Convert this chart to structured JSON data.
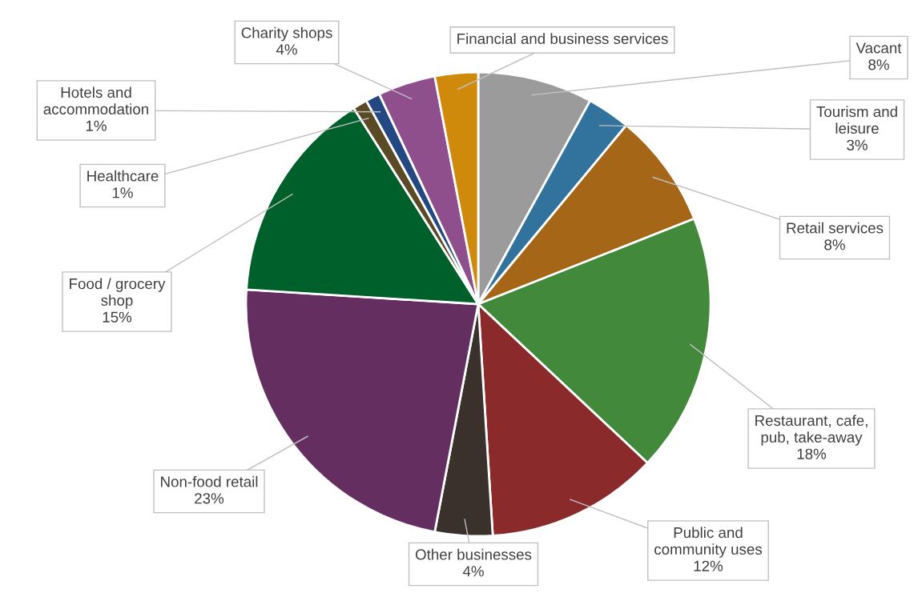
{
  "chart_data": {
    "type": "pie",
    "categories": [
      "Vacant",
      "Tourism and leisure",
      "Retail services",
      "Restaurant, cafe, pub, take-away",
      "Public and community uses",
      "Other businesses",
      "Non-food retail",
      "Food / grocery shop",
      "Healthcare",
      "Hotels and accommodation",
      "Charity shops",
      "Financial and business services"
    ],
    "values": [
      8,
      3,
      8,
      18,
      12,
      4,
      23,
      15,
      1,
      1,
      4,
      3
    ],
    "value_labels": [
      "8%",
      "3%",
      "8%",
      "18%",
      "12%",
      "4%",
      "23%",
      "15%",
      "1%",
      "1%",
      "4%",
      null
    ],
    "colors": [
      "#9b9b9b",
      "#31739c",
      "#a66618",
      "#43893c",
      "#8a2a2a",
      "#3a302c",
      "#642e60",
      "#00602b",
      "#5a4a26",
      "#234882",
      "#8e4f8c",
      "#cf8a0b"
    ]
  }
}
